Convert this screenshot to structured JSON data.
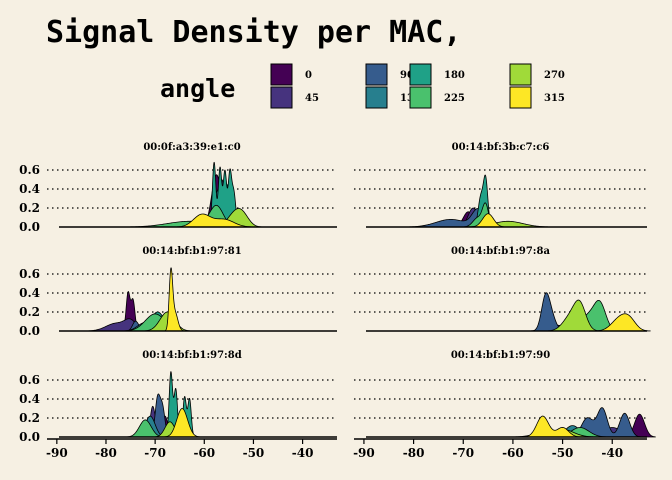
{
  "chart_data": {
    "type": "area",
    "title": "Signal Density per MAC,",
    "legend": {
      "title": "angle",
      "placement": "top",
      "entries": [
        {
          "label": "0",
          "color": "#440154"
        },
        {
          "label": "45",
          "color": "#46337e"
        },
        {
          "label": "90",
          "color": "#365c8d"
        },
        {
          "label": "135",
          "color": "#277f8e"
        },
        {
          "label": "180",
          "color": "#1fa187"
        },
        {
          "label": "225",
          "color": "#4ac16d"
        },
        {
          "label": "270",
          "color": "#a0da39"
        },
        {
          "label": "315",
          "color": "#fde725"
        }
      ]
    },
    "xlim": [
      -92,
      -33
    ],
    "ylim": [
      0,
      0.72
    ],
    "xticks": [
      -90,
      -80,
      -70,
      -60,
      -50,
      -40
    ],
    "xtick_labels": [
      "-90",
      "-80",
      "-70",
      "-60",
      "-50",
      "-40"
    ],
    "yticks": [
      0,
      0.2,
      0.4,
      0.6
    ],
    "ytick_labels": [
      "0.0",
      "0.2",
      "0.4",
      "0.6"
    ],
    "grid": "horizontal dotted",
    "panels": [
      {
        "mac": "00:0f:a3:39:e1:c0",
        "series": [
          {
            "angle": "0",
            "peaks": [
              [
                -57.5,
                1.0,
                0.55
              ]
            ]
          },
          {
            "angle": "45",
            "peaks": [
              [
                -56.5,
                1.0,
                0.5
              ]
            ]
          },
          {
            "angle": "90",
            "peaks": [
              [
                -55.5,
                1.1,
                0.45
              ]
            ]
          },
          {
            "angle": "135",
            "peaks": [
              [
                -57,
                1.2,
                0.4
              ]
            ]
          },
          {
            "angle": "180",
            "peaks": [
              [
                -58,
                0.35,
                0.68
              ],
              [
                -56.8,
                0.35,
                0.62
              ],
              [
                -55.8,
                0.35,
                0.58
              ],
              [
                -54.8,
                0.35,
                0.55
              ],
              [
                -54,
                0.4,
                0.36
              ]
            ]
          },
          {
            "angle": "225",
            "peaks": [
              [
                -63,
                4.5,
                0.06
              ],
              [
                -57.5,
                1.3,
                0.2
              ]
            ]
          },
          {
            "angle": "270",
            "peaks": [
              [
                -53.5,
                1.6,
                0.16
              ],
              [
                -52,
                1.2,
                0.06
              ]
            ]
          },
          {
            "angle": "315",
            "peaks": [
              [
                -60.5,
                1.7,
                0.13
              ],
              [
                -56,
                2.0,
                0.08
              ]
            ]
          }
        ]
      },
      {
        "mac": "00:14:bf:3b:c7:c6",
        "series": [
          {
            "angle": "0",
            "peaks": [
              [
                -69,
                1.0,
                0.16
              ]
            ]
          },
          {
            "angle": "45",
            "peaks": [
              [
                -68,
                1.0,
                0.2
              ]
            ]
          },
          {
            "angle": "90",
            "peaks": [
              [
                -72.5,
                3.0,
                0.08
              ],
              [
                -67,
                1.2,
                0.18
              ]
            ]
          },
          {
            "angle": "135",
            "peaks": [
              [
                -66,
                1.2,
                0.14
              ]
            ]
          },
          {
            "angle": "180",
            "peaks": [
              [
                -65.5,
                0.45,
                0.5
              ],
              [
                -66.5,
                0.5,
                0.3
              ]
            ]
          },
          {
            "angle": "225",
            "peaks": [
              [
                -65.5,
                0.6,
                0.22
              ],
              [
                -67,
                1.0,
                0.1
              ]
            ]
          },
          {
            "angle": "270",
            "peaks": [
              [
                -61,
                3.0,
                0.06
              ]
            ]
          },
          {
            "angle": "315",
            "peaks": [
              [
                -65,
                1.1,
                0.14
              ]
            ]
          }
        ]
      },
      {
        "mac": "00:14:bf:b1:97:81",
        "series": [
          {
            "angle": "0",
            "peaks": [
              [
                -75.5,
                0.4,
                0.4
              ],
              [
                -74.5,
                0.4,
                0.32
              ]
            ]
          },
          {
            "angle": "45",
            "peaks": [
              [
                -78,
                2.0,
                0.08
              ],
              [
                -75,
                1.2,
                0.1
              ]
            ]
          },
          {
            "angle": "90",
            "peaks": [
              [
                -74,
                0.6,
                0.1
              ],
              [
                -71,
                1.2,
                0.08
              ]
            ]
          },
          {
            "angle": "135",
            "peaks": [
              [
                -72,
                1.5,
                0.09
              ]
            ]
          },
          {
            "angle": "180",
            "peaks": [
              [
                -69.5,
                1.4,
                0.2
              ]
            ]
          },
          {
            "angle": "225",
            "peaks": [
              [
                -70,
                2.0,
                0.18
              ]
            ]
          },
          {
            "angle": "270",
            "peaks": [
              [
                -67.5,
                1.5,
                0.2
              ]
            ]
          },
          {
            "angle": "315",
            "peaks": [
              [
                -66.8,
                0.35,
                0.58
              ],
              [
                -66,
                0.6,
                0.2
              ]
            ]
          }
        ]
      },
      {
        "mac": "00:14:bf:b1:97:8a",
        "series": [
          {
            "angle": "0",
            "peaks": [
              [
                -48,
                2.5,
                0.05
              ]
            ]
          },
          {
            "angle": "45",
            "peaks": [
              [
                -51,
                2.0,
                0.06
              ]
            ]
          },
          {
            "angle": "90",
            "peaks": [
              [
                -53.5,
                0.8,
                0.28
              ],
              [
                -52.5,
                1.0,
                0.18
              ]
            ]
          },
          {
            "angle": "135",
            "peaks": [
              [
                -45,
                2.5,
                0.08
              ]
            ]
          },
          {
            "angle": "180",
            "peaks": [
              [
                -44,
                2.0,
                0.05
              ]
            ]
          },
          {
            "angle": "225",
            "peaks": [
              [
                -42.5,
                1.2,
                0.28
              ],
              [
                -45,
                1.5,
                0.15
              ]
            ]
          },
          {
            "angle": "270",
            "peaks": [
              [
                -48.5,
                1.5,
                0.14
              ],
              [
                -46.5,
                1.2,
                0.26
              ]
            ]
          },
          {
            "angle": "315",
            "peaks": [
              [
                -38.5,
                1.6,
                0.13
              ],
              [
                -36.5,
                1.3,
                0.1
              ]
            ]
          }
        ]
      },
      {
        "mac": "00:14:bf:b1:97:8d",
        "series": [
          {
            "angle": "0",
            "peaks": [
              [
                -68,
                0.6,
                0.22
              ]
            ]
          },
          {
            "angle": "45",
            "peaks": [
              [
                -70.5,
                0.5,
                0.32
              ],
              [
                -69,
                0.5,
                0.26
              ]
            ]
          },
          {
            "angle": "90",
            "peaks": [
              [
                -69.5,
                0.5,
                0.4
              ],
              [
                -68.5,
                0.5,
                0.3
              ]
            ]
          },
          {
            "angle": "135",
            "peaks": [
              [
                -71,
                1.0,
                0.22
              ]
            ]
          },
          {
            "angle": "180",
            "peaks": [
              [
                -66.8,
                0.35,
                0.68
              ],
              [
                -65.8,
                0.35,
                0.5
              ],
              [
                -64,
                0.35,
                0.42
              ],
              [
                -63,
                0.35,
                0.4
              ]
            ]
          },
          {
            "angle": "225",
            "peaks": [
              [
                -72,
                1.2,
                0.18
              ]
            ]
          },
          {
            "angle": "270",
            "peaks": [
              [
                -67,
                1.0,
                0.16
              ]
            ]
          },
          {
            "angle": "315",
            "peaks": [
              [
                -64.5,
                1.1,
                0.3
              ]
            ]
          }
        ]
      },
      {
        "mac": "00:14:bf:b1:97:90",
        "series": [
          {
            "angle": "0",
            "peaks": [
              [
                -34.5,
                1.0,
                0.24
              ]
            ]
          },
          {
            "angle": "45",
            "peaks": [
              [
                -40,
                2.0,
                0.1
              ]
            ]
          },
          {
            "angle": "90",
            "peaks": [
              [
                -42,
                1.0,
                0.3
              ],
              [
                -37.5,
                1.0,
                0.25
              ],
              [
                -45,
                1.2,
                0.2
              ]
            ]
          },
          {
            "angle": "135",
            "peaks": [
              [
                -48,
                1.5,
                0.12
              ]
            ]
          },
          {
            "angle": "180",
            "peaks": [
              [
                -53,
                2.5,
                0.05
              ]
            ]
          },
          {
            "angle": "225",
            "peaks": [
              [
                -46.5,
                1.8,
                0.1
              ]
            ]
          },
          {
            "angle": "270",
            "peaks": [
              [
                -50,
                2.2,
                0.08
              ]
            ]
          },
          {
            "angle": "315",
            "peaks": [
              [
                -54,
                1.2,
                0.22
              ],
              [
                -50,
                1.2,
                0.1
              ]
            ]
          }
        ]
      }
    ]
  }
}
